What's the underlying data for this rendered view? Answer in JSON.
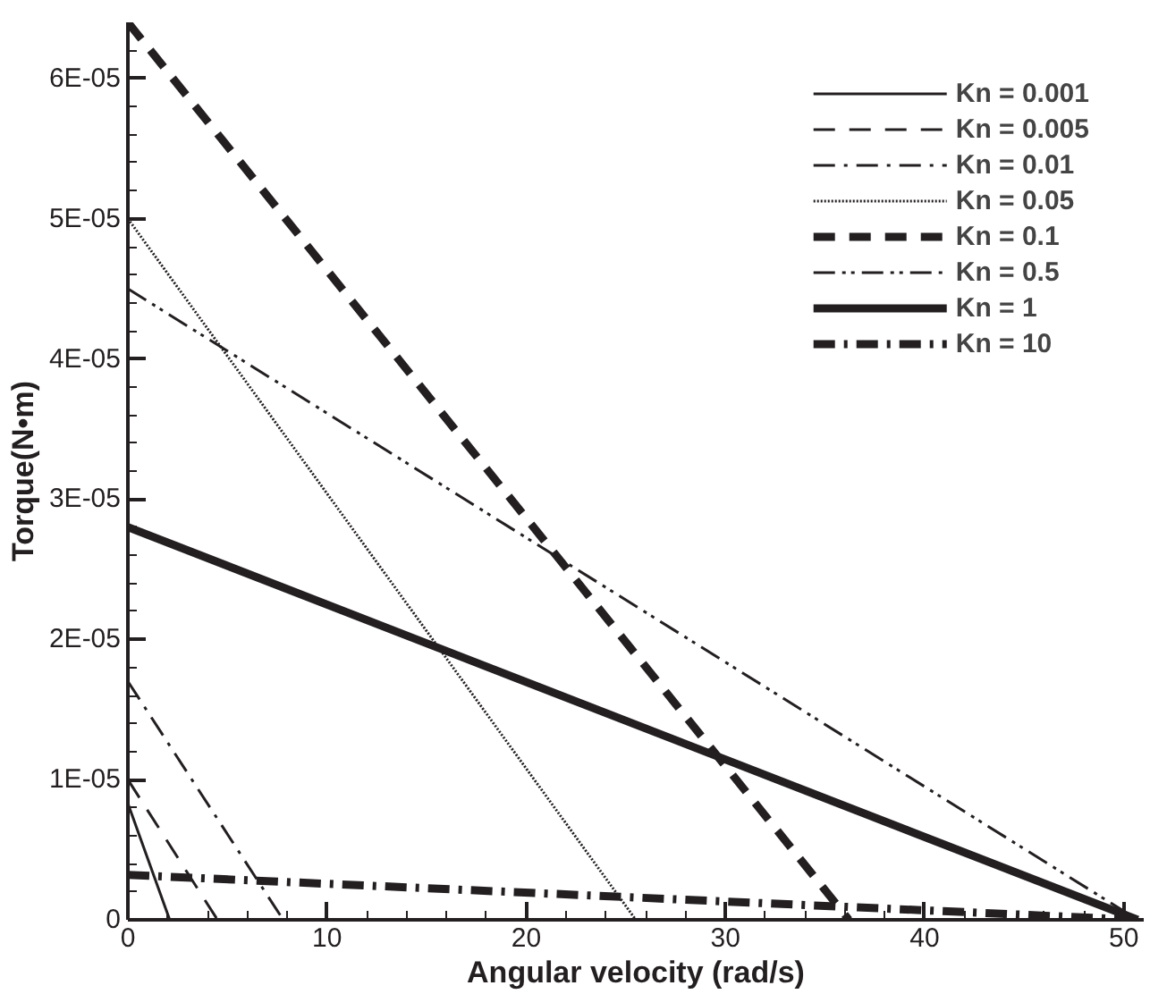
{
  "chart_data": {
    "type": "line",
    "xlabel": "Angular velocity (rad/s)",
    "ylabel": "Torque(N•m)",
    "xlim": [
      0,
      51
    ],
    "ylim": [
      0,
      6.4e-05
    ],
    "xticks": [
      0,
      10,
      20,
      30,
      40,
      50
    ],
    "yticks": [
      {
        "value": 0,
        "label": "0"
      },
      {
        "value": 1e-05,
        "label": "1E-05"
      },
      {
        "value": 2e-05,
        "label": "2E-05"
      },
      {
        "value": 3e-05,
        "label": "3E-05"
      },
      {
        "value": 4e-05,
        "label": "4E-05"
      },
      {
        "value": 5e-05,
        "label": "5E-05"
      },
      {
        "value": 6e-05,
        "label": "6E-05"
      }
    ],
    "grid": false,
    "legend": "top right",
    "series": [
      {
        "name": "Kn = 0.001",
        "color": "#231f20",
        "line_style": "solid",
        "x": [
          0,
          2.1
        ],
        "values": [
          8.3e-06,
          0
        ]
      },
      {
        "name": "Kn = 0.005",
        "color": "#231f20",
        "line_style": "dashed",
        "x": [
          0,
          4.5
        ],
        "values": [
          1e-05,
          0
        ]
      },
      {
        "name": "Kn = 0.01",
        "color": "#231f20",
        "line_style": "dashdot",
        "x": [
          0,
          7.8
        ],
        "values": [
          1.7e-05,
          0
        ]
      },
      {
        "name": "Kn = 0.05",
        "color": "#231f20",
        "line_style": "dotted",
        "x": [
          0,
          25.5
        ],
        "values": [
          5e-05,
          0
        ]
      },
      {
        "name": "Kn = 0.1",
        "color": "#231f20",
        "line_style": "dashed",
        "x": [
          0,
          36.2
        ],
        "values": [
          6.4e-05,
          0
        ]
      },
      {
        "name": "Kn = 0.5",
        "color": "#231f20",
        "line_style": "dashdotdot",
        "x": [
          0,
          50.7
        ],
        "values": [
          4.5e-05,
          0
        ]
      },
      {
        "name": "Kn = 1",
        "color": "#231f20",
        "line_style": "solid",
        "x": [
          0,
          50.7
        ],
        "values": [
          2.8e-05,
          0
        ]
      },
      {
        "name": "Kn = 10",
        "color": "#231f20",
        "line_style": "dashdot",
        "x": [
          0,
          50.7
        ],
        "values": [
          3.2e-06,
          0
        ]
      }
    ]
  }
}
